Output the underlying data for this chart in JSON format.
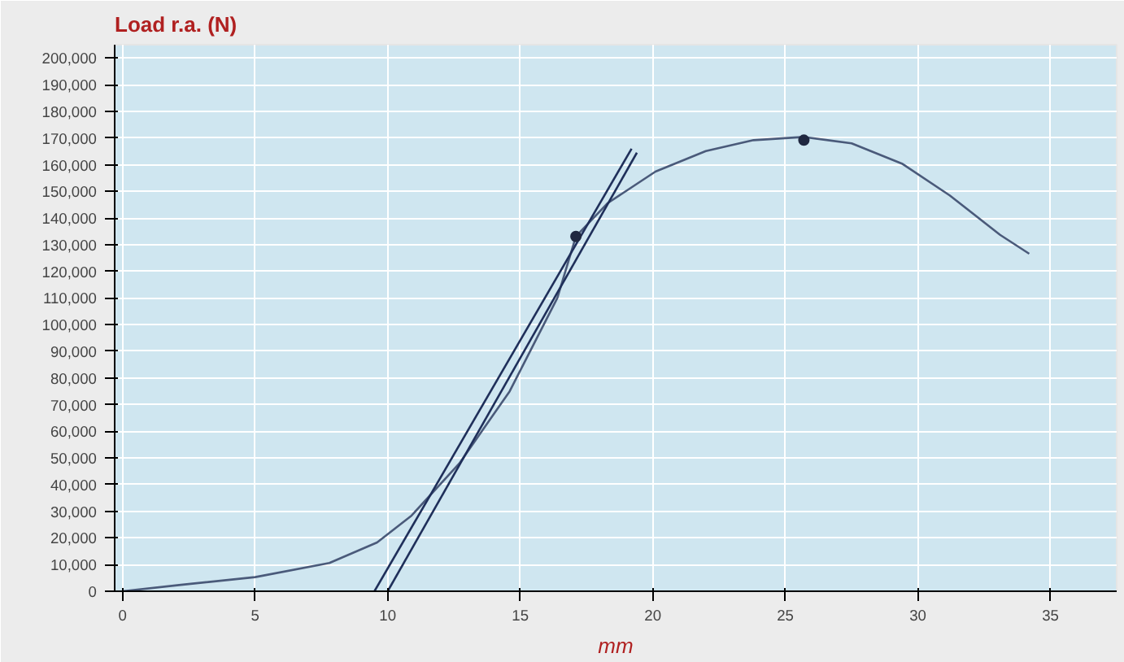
{
  "chart_data": {
    "type": "line",
    "ylabel": "Load r.a. (N)",
    "xlabel": "mm",
    "xlim": [
      -0.3,
      37.5
    ],
    "xticks": [
      0,
      5,
      10,
      15,
      20,
      25,
      30,
      35
    ],
    "ylim": [
      0,
      205000
    ],
    "yticks": [
      0,
      {
        "value": 10000,
        "label": "10,000"
      },
      {
        "value": 20000,
        "label": "20,000"
      },
      {
        "value": 30000,
        "label": "30,000"
      },
      {
        "value": 40000,
        "label": "40,000"
      },
      {
        "value": 50000,
        "label": "50,000"
      },
      {
        "value": 60000,
        "label": "60,000"
      },
      {
        "value": 70000,
        "label": "70,000"
      },
      {
        "value": 80000,
        "label": "80,000"
      },
      {
        "value": 90000,
        "label": "90,000"
      },
      {
        "value": 100000,
        "label": "100,000"
      },
      {
        "value": 110000,
        "label": "110,000"
      },
      {
        "value": 120000,
        "label": "120,000"
      },
      {
        "value": 130000,
        "label": "130,000"
      },
      {
        "value": 140000,
        "label": "140,000"
      },
      {
        "value": 150000,
        "label": "150,000"
      },
      {
        "value": 160000,
        "label": "160,000"
      },
      {
        "value": 170000,
        "label": "170,000"
      },
      {
        "value": 180000,
        "label": "180,000"
      },
      {
        "value": 190000,
        "label": "190,000"
      },
      {
        "value": 200000,
        "label": "200,000"
      }
    ],
    "grid": true,
    "series": [
      {
        "color": "#4a5a7a",
        "x": [
          0,
          2.2,
          5,
          7.8,
          9.6,
          10.9,
          12.7,
          14.6,
          16.4,
          17.1,
          18.3,
          20.1,
          22,
          23.8,
          25.7,
          27.5,
          29.4,
          31.2,
          33.1,
          34.2
        ],
        "values": [
          0,
          2400,
          5300,
          10600,
          18300,
          28400,
          47900,
          75000,
          110000,
          133100,
          145600,
          157400,
          165100,
          169200,
          170400,
          168000,
          160400,
          148500,
          133700,
          126600
        ]
      },
      {
        "color": "#1f2f5a",
        "x": [
          9.5,
          19.2
        ],
        "values": [
          0,
          166000
        ]
      },
      {
        "color": "#1f2f5a",
        "x": [
          10.0,
          19.4
        ],
        "values": [
          0,
          164500
        ]
      },
      {
        "type": "scatter",
        "color": "#202840",
        "x": [
          17.1,
          25.7
        ],
        "values": [
          133100,
          169200
        ]
      }
    ]
  }
}
